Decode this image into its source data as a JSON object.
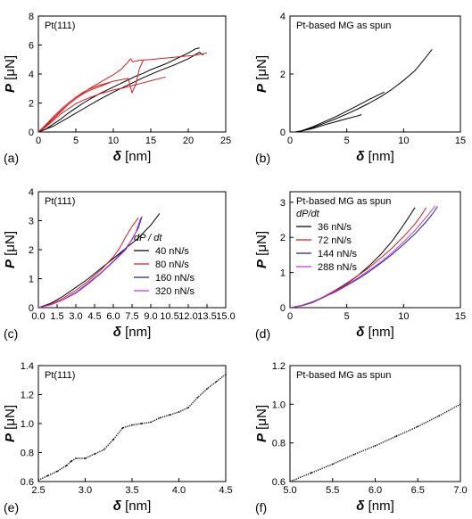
{
  "chart_data": [
    {
      "panel": "(a)",
      "type": "line",
      "annotation": "Pt(111)",
      "xlabel": "δ [nm]",
      "ylabel": "P [μN]",
      "xlim": [
        0,
        25
      ],
      "ylim": [
        0,
        8
      ],
      "xticks": [
        0,
        5,
        10,
        15,
        20,
        25
      ],
      "yticks": [
        0,
        2,
        4,
        6,
        8
      ],
      "series": [
        {
          "color": "#000000",
          "x": [
            0,
            1,
            2,
            3,
            4,
            5,
            6,
            7,
            8,
            9,
            10,
            11,
            12,
            13,
            14,
            15,
            16,
            17,
            18,
            19,
            20,
            21,
            21.5
          ],
          "y": [
            0,
            0.2,
            0.55,
            0.9,
            1.3,
            1.65,
            2.0,
            2.3,
            2.6,
            2.85,
            3.1,
            3.35,
            3.6,
            3.85,
            4.05,
            4.3,
            4.5,
            4.7,
            4.95,
            5.2,
            5.45,
            5.75,
            5.8
          ]
        },
        {
          "color": "#000000",
          "x": [
            0,
            2,
            4,
            6,
            8,
            10,
            12,
            14,
            16,
            18,
            20,
            21.5,
            22
          ],
          "y": [
            0,
            0.4,
            1.0,
            1.6,
            2.2,
            2.75,
            3.25,
            3.75,
            4.2,
            4.6,
            5.05,
            5.5,
            5.3
          ]
        },
        {
          "color": "#d81e1e",
          "x": [
            0,
            1,
            2,
            3,
            4,
            5,
            6,
            7,
            8,
            9,
            10,
            11,
            12,
            12.3,
            12.6,
            13.5,
            15,
            17,
            19,
            21,
            22.5
          ],
          "y": [
            0,
            0.4,
            0.9,
            1.4,
            1.9,
            2.3,
            2.7,
            3.05,
            3.35,
            3.65,
            3.95,
            4.3,
            4.85,
            5.05,
            4.85,
            4.95,
            5.0,
            5.1,
            5.2,
            5.3,
            5.45
          ]
        },
        {
          "color": "#d81e1e",
          "x": [
            0,
            1,
            2,
            3,
            4,
            5,
            6,
            7,
            8,
            9,
            10,
            11,
            12,
            12.5,
            13,
            13.5,
            14
          ],
          "y": [
            0,
            0.5,
            1.05,
            1.55,
            2.0,
            2.4,
            2.75,
            3.0,
            3.2,
            3.35,
            3.5,
            3.6,
            3.7,
            2.7,
            3.3,
            4.4,
            4.95
          ]
        },
        {
          "color": "#d81e1e",
          "x": [
            0,
            1,
            2,
            3,
            4,
            5,
            6,
            7,
            8,
            9,
            10,
            11,
            12.5,
            14,
            15.5,
            17
          ],
          "y": [
            0,
            0.35,
            0.8,
            1.25,
            1.6,
            1.95,
            2.2,
            2.4,
            2.6,
            2.75,
            2.9,
            3.0,
            3.2,
            3.4,
            3.6,
            3.8
          ]
        },
        {
          "color": "#d81e1e",
          "x": [
            0,
            1,
            2,
            3,
            4,
            5,
            6,
            7,
            8,
            9,
            9.5
          ],
          "y": [
            0,
            0.45,
            0.95,
            1.45,
            1.9,
            2.3,
            2.65,
            2.9,
            3.1,
            3.3,
            3.4
          ]
        }
      ]
    },
    {
      "panel": "(b)",
      "type": "line",
      "annotation": "Pt-based MG as spun",
      "xlabel": "δ [nm]",
      "ylabel": "P [μN]",
      "xlim": [
        0,
        15
      ],
      "ylim": [
        0,
        4
      ],
      "xticks": [
        0,
        5,
        10,
        15
      ],
      "yticks": [
        0,
        2,
        4
      ],
      "series": [
        {
          "color": "#000000",
          "x": [
            0.5,
            1,
            2,
            3,
            4,
            5,
            6,
            7,
            8,
            9,
            10,
            11,
            11.5,
            12,
            12.5
          ],
          "y": [
            0,
            0.04,
            0.15,
            0.3,
            0.45,
            0.62,
            0.8,
            1.0,
            1.22,
            1.48,
            1.78,
            2.12,
            2.35,
            2.6,
            2.85
          ]
        },
        {
          "color": "#000000",
          "x": [
            0.5,
            1,
            2,
            3,
            4,
            5,
            6,
            7,
            8,
            8.3
          ],
          "y": [
            0,
            0.04,
            0.18,
            0.35,
            0.52,
            0.72,
            0.92,
            1.13,
            1.32,
            1.38
          ]
        },
        {
          "color": "#000000",
          "x": [
            0.5,
            1,
            2,
            3,
            4,
            5,
            6,
            6.3
          ],
          "y": [
            0,
            0.03,
            0.12,
            0.24,
            0.35,
            0.46,
            0.56,
            0.6
          ]
        }
      ]
    },
    {
      "panel": "(c)",
      "type": "line",
      "annotation": "Pt(111)",
      "legend_title": "dP / dt",
      "legend_position": "right",
      "xlabel": "δ [nm]",
      "ylabel": "P [μN]",
      "xlim": [
        0,
        15
      ],
      "ylim": [
        0,
        4
      ],
      "xticks": [
        0,
        1.5,
        3,
        4.5,
        6,
        7.5,
        9,
        10.5,
        12,
        13.5,
        15
      ],
      "yticks": [
        0,
        1,
        2,
        3,
        4
      ],
      "series": [
        {
          "name": "40 nN/s",
          "color": "#000000",
          "x": [
            0,
            1,
            2,
            3,
            4,
            5,
            6,
            7,
            8,
            9,
            9.7
          ],
          "y": [
            0,
            0.15,
            0.4,
            0.7,
            1.0,
            1.35,
            1.7,
            2.05,
            2.4,
            2.85,
            3.25
          ]
        },
        {
          "name": "80 nN/s",
          "color": "#d81e1e",
          "x": [
            0,
            1,
            2,
            3,
            4,
            5,
            6,
            6.5,
            7,
            7.5,
            8
          ],
          "y": [
            0,
            0.12,
            0.33,
            0.6,
            0.92,
            1.3,
            1.75,
            2.05,
            2.45,
            2.8,
            3.1
          ]
        },
        {
          "name": "160 nN/s",
          "color": "#1f1fa8",
          "x": [
            0,
            1,
            2,
            3,
            4,
            5,
            6,
            7,
            7.5,
            8,
            8.3
          ],
          "y": [
            0,
            0.1,
            0.28,
            0.52,
            0.85,
            1.2,
            1.6,
            2.05,
            2.35,
            2.75,
            3.15
          ]
        },
        {
          "name": "320 nN/s",
          "color": "#c43ad6",
          "x": [
            0,
            1,
            2,
            3,
            4,
            5,
            6,
            7,
            7.8,
            8.2
          ],
          "y": [
            0,
            0.1,
            0.27,
            0.5,
            0.82,
            1.18,
            1.58,
            2.0,
            2.6,
            3.1
          ]
        }
      ]
    },
    {
      "panel": "(d)",
      "type": "line",
      "annotation": "Pt-based MG as spun",
      "legend_title": "dP/dt",
      "legend_position": "top-left",
      "xlabel": "δ [nm]",
      "ylabel": "P [μN]",
      "xlim": [
        0,
        15
      ],
      "ylim": [
        0,
        3.3
      ],
      "xticks": [
        0,
        5,
        10,
        15
      ],
      "yticks": [
        0,
        1,
        2,
        3
      ],
      "series": [
        {
          "name": "36 nN/s",
          "color": "#000000",
          "x": [
            0,
            1,
            2,
            3,
            4,
            5,
            6,
            7,
            8,
            9,
            10,
            10.5,
            11
          ],
          "y": [
            0,
            0.05,
            0.15,
            0.3,
            0.48,
            0.68,
            0.92,
            1.2,
            1.52,
            1.9,
            2.35,
            2.6,
            2.85
          ]
        },
        {
          "name": "72 nN/s",
          "color": "#d81e1e",
          "x": [
            0,
            1,
            2,
            3,
            4,
            5,
            6,
            7,
            8,
            9,
            10,
            11,
            11.5,
            12
          ],
          "y": [
            0,
            0.06,
            0.17,
            0.32,
            0.5,
            0.7,
            0.92,
            1.15,
            1.42,
            1.7,
            2.02,
            2.38,
            2.6,
            2.85
          ]
        },
        {
          "name": "144 nN/s",
          "color": "#1f1fa8",
          "x": [
            0,
            1,
            2,
            3,
            4,
            5,
            6,
            7,
            8,
            9,
            10,
            11,
            12,
            12.5,
            13
          ],
          "y": [
            0,
            0.06,
            0.16,
            0.3,
            0.45,
            0.63,
            0.82,
            1.03,
            1.27,
            1.52,
            1.8,
            2.1,
            2.45,
            2.65,
            2.88
          ]
        },
        {
          "name": "288 nN/s",
          "color": "#c43ad6",
          "x": [
            0,
            1,
            2,
            3,
            4,
            5,
            6,
            7,
            8,
            9,
            10,
            11,
            12,
            12.8
          ],
          "y": [
            0,
            0.06,
            0.17,
            0.31,
            0.47,
            0.65,
            0.85,
            1.07,
            1.3,
            1.57,
            1.87,
            2.2,
            2.58,
            2.9
          ]
        }
      ]
    },
    {
      "panel": "(e)",
      "type": "scatter",
      "annotation": "Pt(111)",
      "xlabel": "δ [nm]",
      "ylabel": "P [μN]",
      "xlim": [
        2.5,
        4.5
      ],
      "ylim": [
        0.6,
        1.4
      ],
      "xticks": [
        2.5,
        3.0,
        3.5,
        4.0,
        4.5
      ],
      "yticks": [
        0.6,
        0.8,
        1.0,
        1.2,
        1.4
      ],
      "series": [
        {
          "color": "#000000",
          "x": [
            2.5,
            2.6,
            2.7,
            2.8,
            2.85,
            2.9,
            3.0,
            3.1,
            3.2,
            3.3,
            3.4,
            3.5,
            3.6,
            3.7,
            3.8,
            3.9,
            4.0,
            4.1,
            4.2,
            4.3,
            4.4,
            4.5
          ],
          "y": [
            0.61,
            0.64,
            0.67,
            0.71,
            0.74,
            0.76,
            0.76,
            0.79,
            0.82,
            0.89,
            0.97,
            0.99,
            1.0,
            1.01,
            1.04,
            1.06,
            1.08,
            1.11,
            1.18,
            1.24,
            1.29,
            1.34
          ]
        }
      ]
    },
    {
      "panel": "(f)",
      "type": "scatter",
      "annotation": "Pt-based MG as spun",
      "xlabel": "δ [nm]",
      "ylabel": "P [μN]",
      "xlim": [
        5.0,
        7.0
      ],
      "ylim": [
        0.6,
        1.2
      ],
      "xticks": [
        5.0,
        5.5,
        6.0,
        6.5,
        7.0
      ],
      "yticks": [
        0.6,
        0.8,
        1.0,
        1.2
      ],
      "series": [
        {
          "color": "#000000",
          "x": [
            5.0,
            5.25,
            5.5,
            5.75,
            6.0,
            6.25,
            6.5,
            6.75,
            7.0
          ],
          "y": [
            0.6,
            0.645,
            0.69,
            0.74,
            0.785,
            0.835,
            0.885,
            0.94,
            1.0
          ]
        }
      ]
    }
  ]
}
